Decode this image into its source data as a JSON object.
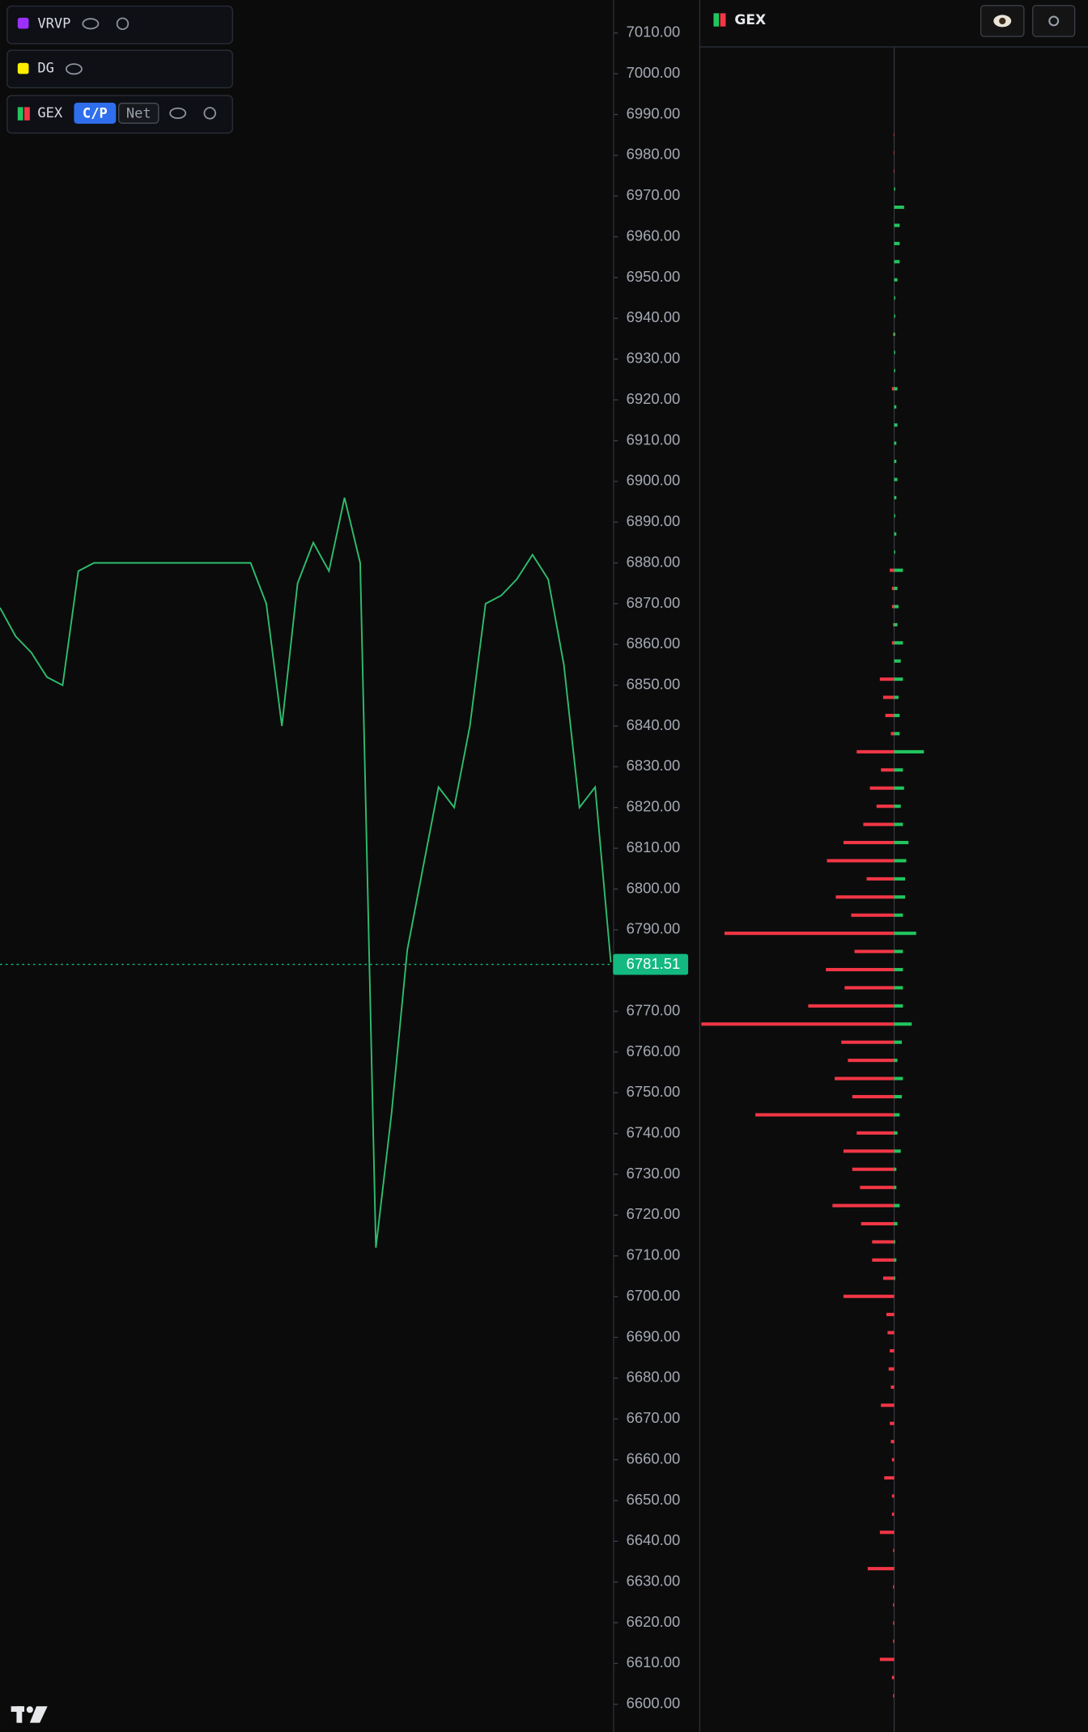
{
  "indicators": [
    {
      "label": "VRVP",
      "color": "#9b30ff"
    },
    {
      "label": "DG",
      "color": "#ffee00"
    },
    {
      "label": "GEX",
      "buttons": [
        "C/P",
        "Net"
      ]
    }
  ],
  "chart_data": [
    {
      "type": "line",
      "color": "#2ebd6e",
      "values": [
        6869,
        6862,
        6858,
        6852,
        6850,
        6878,
        6880,
        6880,
        6880,
        6880,
        6880,
        6880,
        6880,
        6880,
        6880,
        6880,
        6880,
        6870,
        6840,
        6875,
        6885,
        6878,
        6896,
        6880,
        6712,
        6745,
        6785,
        6805,
        6825,
        6820,
        6840,
        6870,
        6872,
        6876,
        6882,
        6876,
        6855,
        6820,
        6825,
        6782
      ],
      "ylim": [
        6593.2,
        7018.1
      ],
      "yticks": [
        {
          "value": 7010,
          "label": "7010.00"
        },
        {
          "value": 7000,
          "label": "7000.00"
        },
        {
          "value": 6990,
          "label": "6990.00"
        },
        {
          "value": 6980,
          "label": "6980.00"
        },
        {
          "value": 6970,
          "label": "6970.00"
        },
        {
          "value": 6960,
          "label": "6960.00"
        },
        {
          "value": 6950,
          "label": "6950.00"
        },
        {
          "value": 6940,
          "label": "6940.00"
        },
        {
          "value": 6930,
          "label": "6930.00"
        },
        {
          "value": 6920,
          "label": "6920.00"
        },
        {
          "value": 6910,
          "label": "6910.00"
        },
        {
          "value": 6900,
          "label": "6900.00"
        },
        {
          "value": 6890,
          "label": "6890.00"
        },
        {
          "value": 6880,
          "label": "6880.00"
        },
        {
          "value": 6870,
          "label": "6870.00"
        },
        {
          "value": 6860,
          "label": "6860.00"
        },
        {
          "value": 6850,
          "label": "6850.00"
        },
        {
          "value": 6840,
          "label": "6840.00"
        },
        {
          "value": 6830,
          "label": "6830.00"
        },
        {
          "value": 6820,
          "label": "6820.00"
        },
        {
          "value": 6810,
          "label": "6810.00"
        },
        {
          "value": 6800,
          "label": "6800.00"
        },
        {
          "value": 6790,
          "label": "6790.00"
        },
        {
          "value": 6770,
          "label": "6770.00"
        },
        {
          "value": 6760,
          "label": "6760.00"
        },
        {
          "value": 6750,
          "label": "6750.00"
        },
        {
          "value": 6740,
          "label": "6740.00"
        },
        {
          "value": 6730,
          "label": "6730.00"
        },
        {
          "value": 6720,
          "label": "6720.00"
        },
        {
          "value": 6710,
          "label": "6710.00"
        },
        {
          "value": 6700,
          "label": "6700.00"
        },
        {
          "value": 6690,
          "label": "6690.00"
        },
        {
          "value": 6680,
          "label": "6680.00"
        },
        {
          "value": 6670,
          "label": "6670.00"
        },
        {
          "value": 6660,
          "label": "6660.00"
        },
        {
          "value": 6650,
          "label": "6650.00"
        },
        {
          "value": 6640,
          "label": "6640.00"
        },
        {
          "value": 6630,
          "label": "6630.00"
        },
        {
          "value": 6620,
          "label": "6620.00"
        },
        {
          "value": 6610,
          "label": "6610.00"
        },
        {
          "value": 6600,
          "label": "6600.00"
        }
      ],
      "current_price": 6781.51,
      "current_price_color": "#13b981"
    },
    {
      "type": "bar",
      "title": "GEX",
      "orientation": "horizontal",
      "strikes": [
        7010,
        7005,
        7000,
        6995,
        6990,
        6985,
        6980,
        6975,
        6970,
        6965,
        6960,
        6955,
        6950,
        6945,
        6940,
        6935,
        6930,
        6925,
        6920,
        6915,
        6910,
        6905,
        6900,
        6895,
        6890,
        6885,
        6880,
        6875,
        6870,
        6865,
        6860,
        6855,
        6850,
        6845,
        6840,
        6835,
        6830,
        6825,
        6820,
        6815,
        6810,
        6805,
        6800,
        6795,
        6790,
        6785,
        6780,
        6775,
        6770,
        6765,
        6760,
        6755,
        6750,
        6745,
        6740,
        6735,
        6730,
        6725,
        6720,
        6715,
        6710,
        6705,
        6700,
        6695,
        6690,
        6685,
        6680,
        6675,
        6670,
        6665,
        6660,
        6655,
        6650,
        6645,
        6640,
        6635,
        6630,
        6625,
        6620,
        6615,
        6610,
        6605,
        6600,
        6595,
        6590,
        6585,
        6580
      ],
      "series": [
        {
          "color": "#f23645",
          "values": [
            -0.5,
            -0.5,
            -0.5,
            0,
            0,
            0,
            0,
            0,
            0,
            0,
            0,
            -1,
            0,
            0,
            -2,
            0,
            0,
            0,
            0,
            0,
            0,
            0,
            0,
            0,
            -4,
            -2,
            -2,
            -1,
            -2,
            0,
            -13,
            -10,
            -8,
            -3,
            -34,
            -12,
            -22,
            -16,
            -28,
            -46,
            -61,
            -25,
            -53,
            -39,
            -154,
            -36,
            -62,
            -45,
            -78,
            -175,
            -48,
            -42,
            -54,
            -38,
            -126,
            -34,
            -46,
            -38,
            -31,
            -56,
            -30,
            -20,
            -20,
            -10,
            -46,
            -7,
            -6,
            -4,
            -5,
            -3,
            -12,
            -4,
            -3,
            -2,
            -9,
            -2,
            -2,
            -13,
            -1,
            -24,
            -1,
            -1,
            -1,
            -1,
            -13,
            -2,
            -1
          ]
        },
        {
          "color": "#22c55e",
          "values": [
            0,
            0,
            0,
            1,
            9,
            5,
            5,
            5,
            3,
            1,
            1,
            1,
            1,
            1,
            3,
            2,
            3,
            2,
            2,
            3,
            2,
            1,
            2,
            1,
            8,
            3,
            4,
            3,
            8,
            6,
            8,
            4,
            5,
            5,
            27,
            8,
            9,
            6,
            8,
            13,
            11,
            10,
            10,
            8,
            20,
            8,
            8,
            8,
            8,
            16,
            7,
            3,
            8,
            7,
            5,
            3,
            6,
            2,
            2,
            5,
            3,
            1,
            2,
            1,
            0,
            0,
            0,
            0,
            0,
            0,
            0,
            0,
            0,
            0,
            0,
            0,
            0,
            0,
            0,
            0,
            0,
            0,
            0,
            0,
            0,
            0,
            0
          ]
        }
      ],
      "xlim": [
        -176,
        176
      ],
      "ylim": [
        6570,
        7034
      ]
    }
  ]
}
